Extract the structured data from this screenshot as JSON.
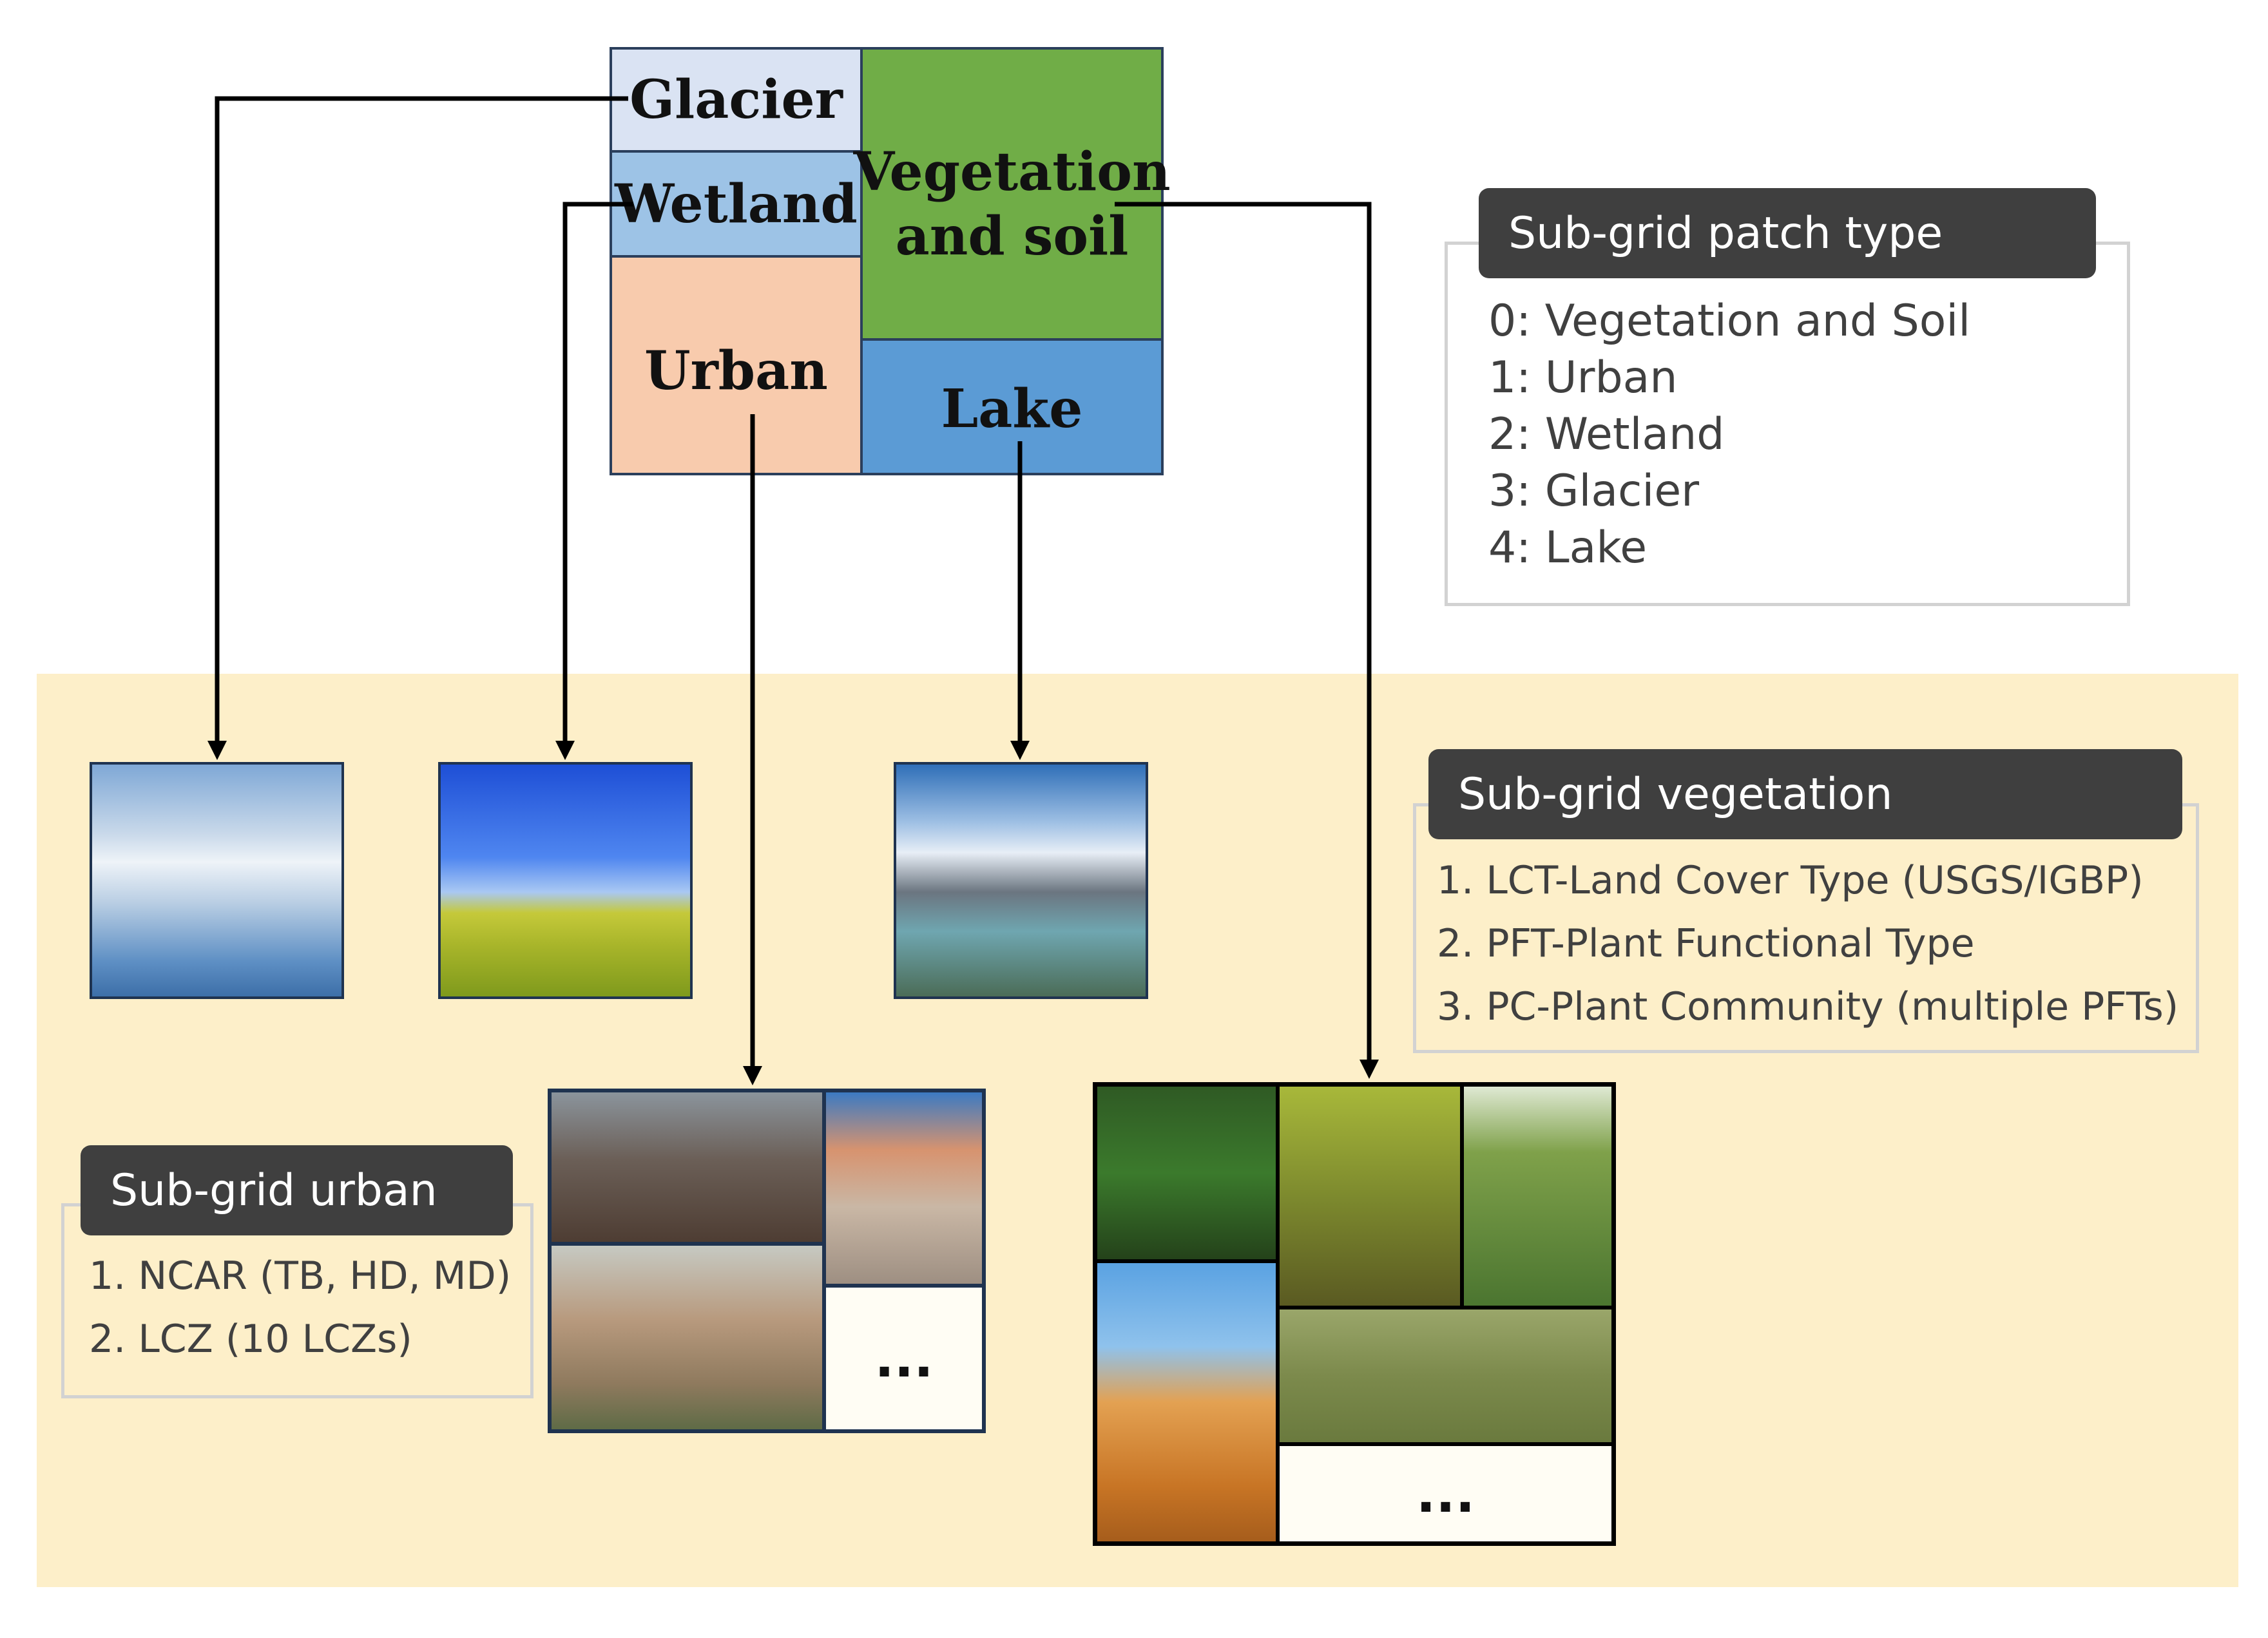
{
  "patch_grid": {
    "glacier": "Glacier",
    "wetland": "Wetland",
    "urban": "Urban",
    "vegetation_line1": "Vegetation",
    "vegetation_line2": "and soil",
    "lake": "Lake"
  },
  "patch_type_box": {
    "title": "Sub-grid patch type",
    "items": [
      "0: Vegetation and Soil",
      "1: Urban",
      "2: Wetland",
      "3: Glacier",
      "4: Lake"
    ]
  },
  "vegetation_box": {
    "title": "Sub-grid vegetation",
    "items": [
      "1. LCT-Land Cover Type (USGS/IGBP)",
      "2. PFT-Plant Functional Type",
      "3. PC-Plant Community (multiple PFTs)"
    ]
  },
  "urban_box": {
    "title": "Sub-grid urban",
    "items": [
      "1. NCAR (TB, HD, MD)",
      "2. LCZ (10 LCZs)"
    ]
  },
  "ellipsis": "...",
  "colors": {
    "glacier": "#dae3f3",
    "wetland": "#9dc3e6",
    "urban": "#f8cbad",
    "vegetation": "#70ad47",
    "lake": "#5b9bd5",
    "band": "#fdefc9",
    "tag": "#3f3f3f"
  }
}
